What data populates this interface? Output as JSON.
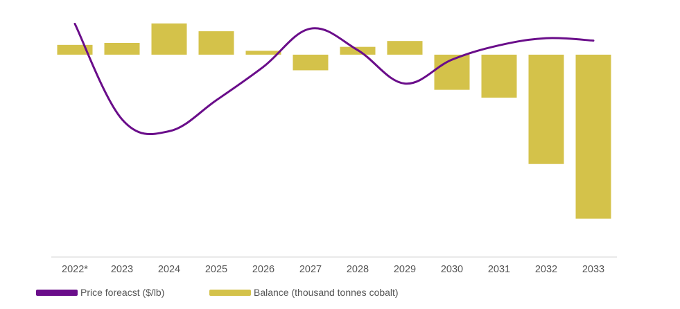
{
  "chart_data": {
    "type": "bar-line-combo",
    "categories": [
      "2022*",
      "2023",
      "2024",
      "2025",
      "2026",
      "2027",
      "2028",
      "2029",
      "2030",
      "2031",
      "2032",
      "2033"
    ],
    "series": [
      {
        "name": "Balance (thousand tonnes cobalt)",
        "type": "bar",
        "color": "#d4c24a",
        "values": [
          2.5,
          3,
          8,
          6,
          1,
          -4,
          2,
          3.5,
          -9,
          -11,
          -28,
          -42
        ]
      },
      {
        "name": "Price foreacst ($/lb)",
        "type": "line",
        "color": "#6a0d8a",
        "values": [
          33,
          13,
          10.5,
          17,
          24,
          32,
          27.5,
          20.5,
          25.5,
          28.5,
          30,
          29.5
        ]
      }
    ],
    "balance_range": [
      -52,
      14
    ],
    "price_range": [
      -16,
      38
    ],
    "y_axis_labels_shown": false
  },
  "legend": {
    "price_label": "Price foreacst ($/lb)",
    "balance_label": "Balance (thousand tonnes cobalt)"
  }
}
